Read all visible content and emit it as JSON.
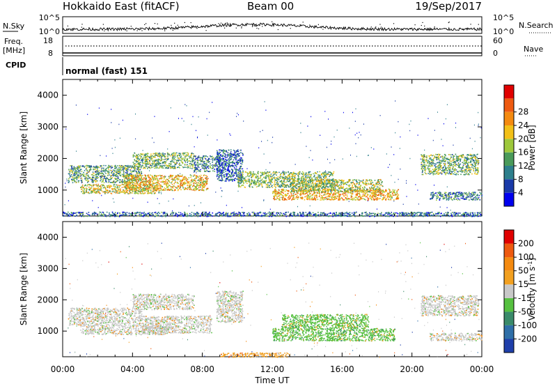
{
  "header": {
    "station": "Hokkaido East (fitACF)",
    "beam": "Beam 00",
    "date": "19/Sep/2017"
  },
  "top_strip": {
    "left_labels": {
      "nsky": "N.Sky",
      "freq": "Freq.",
      "freq_unit": "[MHz]",
      "cpid": "CPID"
    },
    "right_labels": {
      "nsearch": "N.Search",
      "nave": "Nave"
    },
    "nsky_ticks": [
      "10^5",
      "10^0"
    ],
    "nsearch_ticks": [
      "10^5",
      "10^0"
    ],
    "freq_ticks": [
      "18",
      "8"
    ],
    "nave_ticks": [
      "60",
      "0"
    ],
    "cpid_text": "normal (fast) 151"
  },
  "chart_data": [
    {
      "type": "heatmap",
      "name": "power",
      "ylabel": "Slant Range [km]",
      "xlabel": "",
      "x_tick_labels": [
        "00:00",
        "04:00",
        "08:00",
        "12:00",
        "16:00",
        "20:00",
        "00:00"
      ],
      "x_range_hours": [
        0,
        24
      ],
      "y_range_km": [
        180,
        4500
      ],
      "y_ticks": [
        1000,
        2000,
        3000,
        4000
      ],
      "colorbar": {
        "label": "Power [dB]",
        "range": [
          0,
          32
        ],
        "tick_labels": [
          "4",
          "8",
          "12",
          "16",
          "20",
          "24",
          "28"
        ],
        "colors": [
          "#0000ee",
          "#1a3aa8",
          "#2e7f8c",
          "#4a9a5a",
          "#9ec83c",
          "#f2c018",
          "#f48a10",
          "#ee5a10",
          "#e00000"
        ]
      },
      "regions": [
        {
          "t0": 0.3,
          "t1": 4.5,
          "r0": 1250,
          "r1": 1800,
          "level": 0.38
        },
        {
          "t0": 1.0,
          "t1": 5.5,
          "r0": 900,
          "r1": 1200,
          "level": 0.55
        },
        {
          "t0": 3.5,
          "t1": 8.3,
          "r0": 1000,
          "r1": 1500,
          "level": 0.62
        },
        {
          "t0": 4.0,
          "t1": 7.5,
          "r0": 1700,
          "r1": 2200,
          "level": 0.42
        },
        {
          "t0": 7.5,
          "t1": 9.0,
          "r0": 1600,
          "r1": 2100,
          "level": 0.3
        },
        {
          "t0": 8.8,
          "t1": 10.3,
          "r0": 1300,
          "r1": 2300,
          "level": 0.22
        },
        {
          "t0": 10.0,
          "t1": 15.5,
          "r0": 1100,
          "r1": 1600,
          "level": 0.45
        },
        {
          "t0": 12.0,
          "t1": 19.2,
          "r0": 700,
          "r1": 1050,
          "level": 0.66
        },
        {
          "t0": 13.0,
          "t1": 18.3,
          "r0": 950,
          "r1": 1350,
          "level": 0.5
        },
        {
          "t0": 20.5,
          "t1": 23.8,
          "r0": 1500,
          "r1": 2150,
          "level": 0.42
        },
        {
          "t0": 21.0,
          "t1": 24.0,
          "r0": 700,
          "r1": 950,
          "level": 0.3
        },
        {
          "t0": 0.0,
          "t1": 24.0,
          "r0": 180,
          "r1": 320,
          "level": 0.25
        }
      ]
    },
    {
      "type": "heatmap",
      "name": "velocity",
      "ylabel": "Slant Range [km]",
      "xlabel": "Time UT",
      "x_tick_labels": [
        "00:00",
        "04:00",
        "08:00",
        "12:00",
        "16:00",
        "20:00",
        "00:00"
      ],
      "x_range_hours": [
        0,
        24
      ],
      "y_range_km": [
        180,
        4500
      ],
      "y_ticks": [
        1000,
        2000,
        3000,
        4000
      ],
      "colorbar": {
        "label": "Velocity [m s^-1]",
        "tick_labels": [
          "200",
          "100",
          "50",
          "15",
          "-15",
          "-50",
          "-100",
          "-200"
        ],
        "colors": [
          "#1f3faa",
          "#2f6fa8",
          "#3a8a6a",
          "#56c040",
          "#c8c8c8",
          "#f2a020",
          "#f48a10",
          "#ee5a10",
          "#e00000"
        ]
      },
      "regions": [
        {
          "t0": 0.3,
          "t1": 4.5,
          "r0": 1200,
          "r1": 1750,
          "level": 4
        },
        {
          "t0": 1.0,
          "t1": 6.0,
          "r0": 900,
          "r1": 1200,
          "level": 4
        },
        {
          "t0": 4.5,
          "t1": 8.5,
          "r0": 950,
          "r1": 1500,
          "level": 4
        },
        {
          "t0": 4.0,
          "t1": 7.5,
          "r0": 1700,
          "r1": 2200,
          "level": 4
        },
        {
          "t0": 8.8,
          "t1": 10.3,
          "r0": 1300,
          "r1": 2300,
          "level": 4
        },
        {
          "t0": 12.0,
          "t1": 19.0,
          "r0": 700,
          "r1": 1100,
          "level": 3
        },
        {
          "t0": 12.5,
          "t1": 17.5,
          "r0": 1100,
          "r1": 1550,
          "level": 3
        },
        {
          "t0": 20.5,
          "t1": 23.8,
          "r0": 1500,
          "r1": 2150,
          "level": 4
        },
        {
          "t0": 21.0,
          "t1": 24.0,
          "r0": 700,
          "r1": 950,
          "level": 4
        },
        {
          "t0": 9.0,
          "t1": 13.0,
          "r0": 180,
          "r1": 320,
          "level": 5
        }
      ]
    }
  ]
}
